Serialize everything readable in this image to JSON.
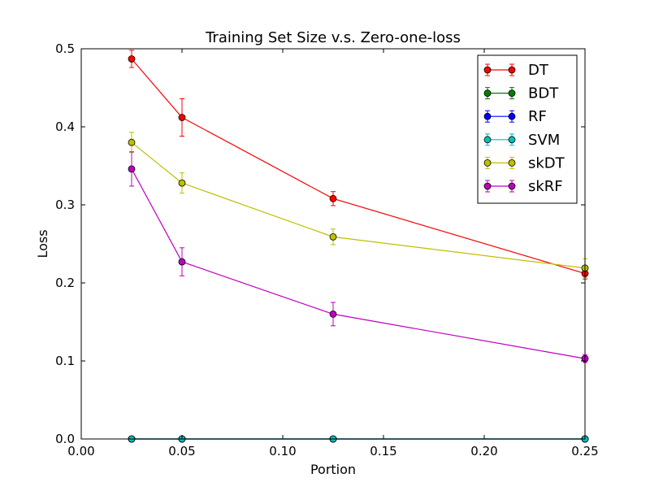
{
  "chart_data": {
    "type": "line",
    "title": "Training Set Size v.s. Zero-one-loss",
    "xlabel": "Portion",
    "ylabel": "Loss",
    "xlim": [
      0.0,
      0.25
    ],
    "ylim": [
      0.0,
      0.5
    ],
    "xticks": [
      0.0,
      0.05,
      0.1,
      0.15,
      0.2,
      0.25
    ],
    "xtick_labels": [
      "0.00",
      "0.05",
      "0.10",
      "0.15",
      "0.20",
      "0.25"
    ],
    "yticks": [
      0.0,
      0.1,
      0.2,
      0.3,
      0.4,
      0.5
    ],
    "ytick_labels": [
      "0.0",
      "0.1",
      "0.2",
      "0.3",
      "0.4",
      "0.5"
    ],
    "grid": false,
    "legend_position": "top-right",
    "x": [
      0.025,
      0.05,
      0.125,
      0.25
    ],
    "series": [
      {
        "name": "DT",
        "color": "#ff0000",
        "values": [
          0.487,
          0.412,
          0.308,
          0.212
        ],
        "errors": [
          0.011,
          0.024,
          0.009,
          0.007
        ]
      },
      {
        "name": "BDT",
        "color": "#008000",
        "values": [
          0.0,
          0.0,
          0.0,
          0.0
        ],
        "errors": [
          0.0,
          0.0,
          0.0,
          0.0
        ]
      },
      {
        "name": "RF",
        "color": "#0000ff",
        "values": [
          0.0,
          0.0,
          0.0,
          0.0
        ],
        "errors": [
          0.0,
          0.0,
          0.0,
          0.0
        ]
      },
      {
        "name": "SVM",
        "color": "#00bfbf",
        "values": [
          0.0,
          0.0,
          0.0,
          0.0
        ],
        "errors": [
          0.0,
          0.0,
          0.0,
          0.0
        ]
      },
      {
        "name": "skDT",
        "color": "#bfbf00",
        "values": [
          0.38,
          0.328,
          0.259,
          0.219
        ],
        "errors": [
          0.013,
          0.013,
          0.01,
          0.012
        ]
      },
      {
        "name": "skRF",
        "color": "#bf00bf",
        "values": [
          0.346,
          0.227,
          0.16,
          0.103
        ],
        "errors": [
          0.022,
          0.018,
          0.015,
          0.005
        ]
      }
    ]
  }
}
